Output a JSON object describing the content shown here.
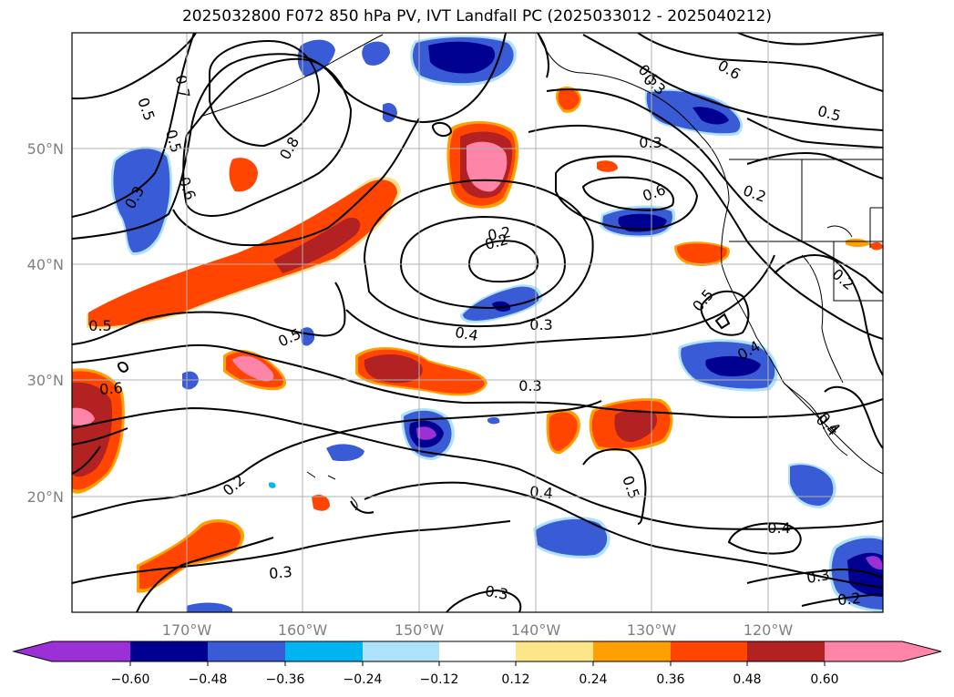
{
  "title": "2025032800 F072 850 hPa PV, IVT Landfall PC (2025033012 - 2025040212)",
  "map": {
    "lon_ticks": [
      "170°W",
      "160°W",
      "150°W",
      "140°W",
      "130°W",
      "120°W"
    ],
    "lat_ticks": [
      "50°N",
      "40°N",
      "30°N",
      "20°N"
    ],
    "contour_labels": [
      "0.7",
      "0.5",
      "0.5",
      "0.6",
      "0.3",
      "0.8",
      "0.5",
      "0.6",
      "0.5",
      "0.2",
      "0.2",
      "0.2",
      "0.4",
      "0.3",
      "0.3",
      "0.4",
      "0.2",
      "0.3",
      "0.3",
      "0.6",
      "0.4",
      "0.5",
      "0.5",
      "0.4",
      "0.3",
      "0.3",
      "0.2",
      "0.5",
      "0.6",
      "0.3",
      "0.4",
      "0.5",
      "0.2",
      "0.4"
    ]
  },
  "colorbar": {
    "ticks": [
      "−0.60",
      "−0.48",
      "−0.36",
      "−0.24",
      "−0.12",
      "0.12",
      "0.24",
      "0.36",
      "0.48",
      "0.60"
    ],
    "colors": [
      "#9b30d6",
      "#000090",
      "#3a5bd6",
      "#00b4f0",
      "#aee2f8",
      "#ffffff",
      "#fde58a",
      "#ffa000",
      "#ff4500",
      "#b22222",
      "#ff85a8"
    ]
  }
}
